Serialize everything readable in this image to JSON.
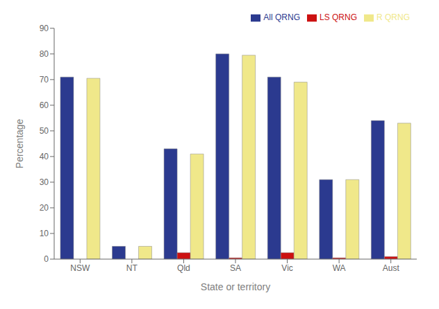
{
  "chart_data": {
    "type": "bar",
    "categories": [
      "NSW",
      "NT",
      "Qld",
      "SA",
      "Vic",
      "WA",
      "Aust"
    ],
    "series": [
      {
        "name": "All QRNG",
        "color": "#2b3a8f",
        "values": [
          71,
          5,
          43,
          80,
          71,
          31,
          54
        ]
      },
      {
        "name": "LS QRNG",
        "color": "#cc1111",
        "values": [
          0,
          0,
          2.5,
          0.5,
          2.5,
          0.5,
          1
        ]
      },
      {
        "name": "R QRNG",
        "color": "#f0e88a",
        "values": [
          70.5,
          5,
          41,
          79.5,
          69,
          31,
          53
        ]
      }
    ],
    "xlabel": "State or territory",
    "ylabel": "Percentage",
    "ylim": [
      0,
      90
    ],
    "yticks": [
      0,
      10,
      20,
      30,
      40,
      50,
      60,
      70,
      80,
      90
    ],
    "grid": false,
    "legend": "upper right"
  }
}
